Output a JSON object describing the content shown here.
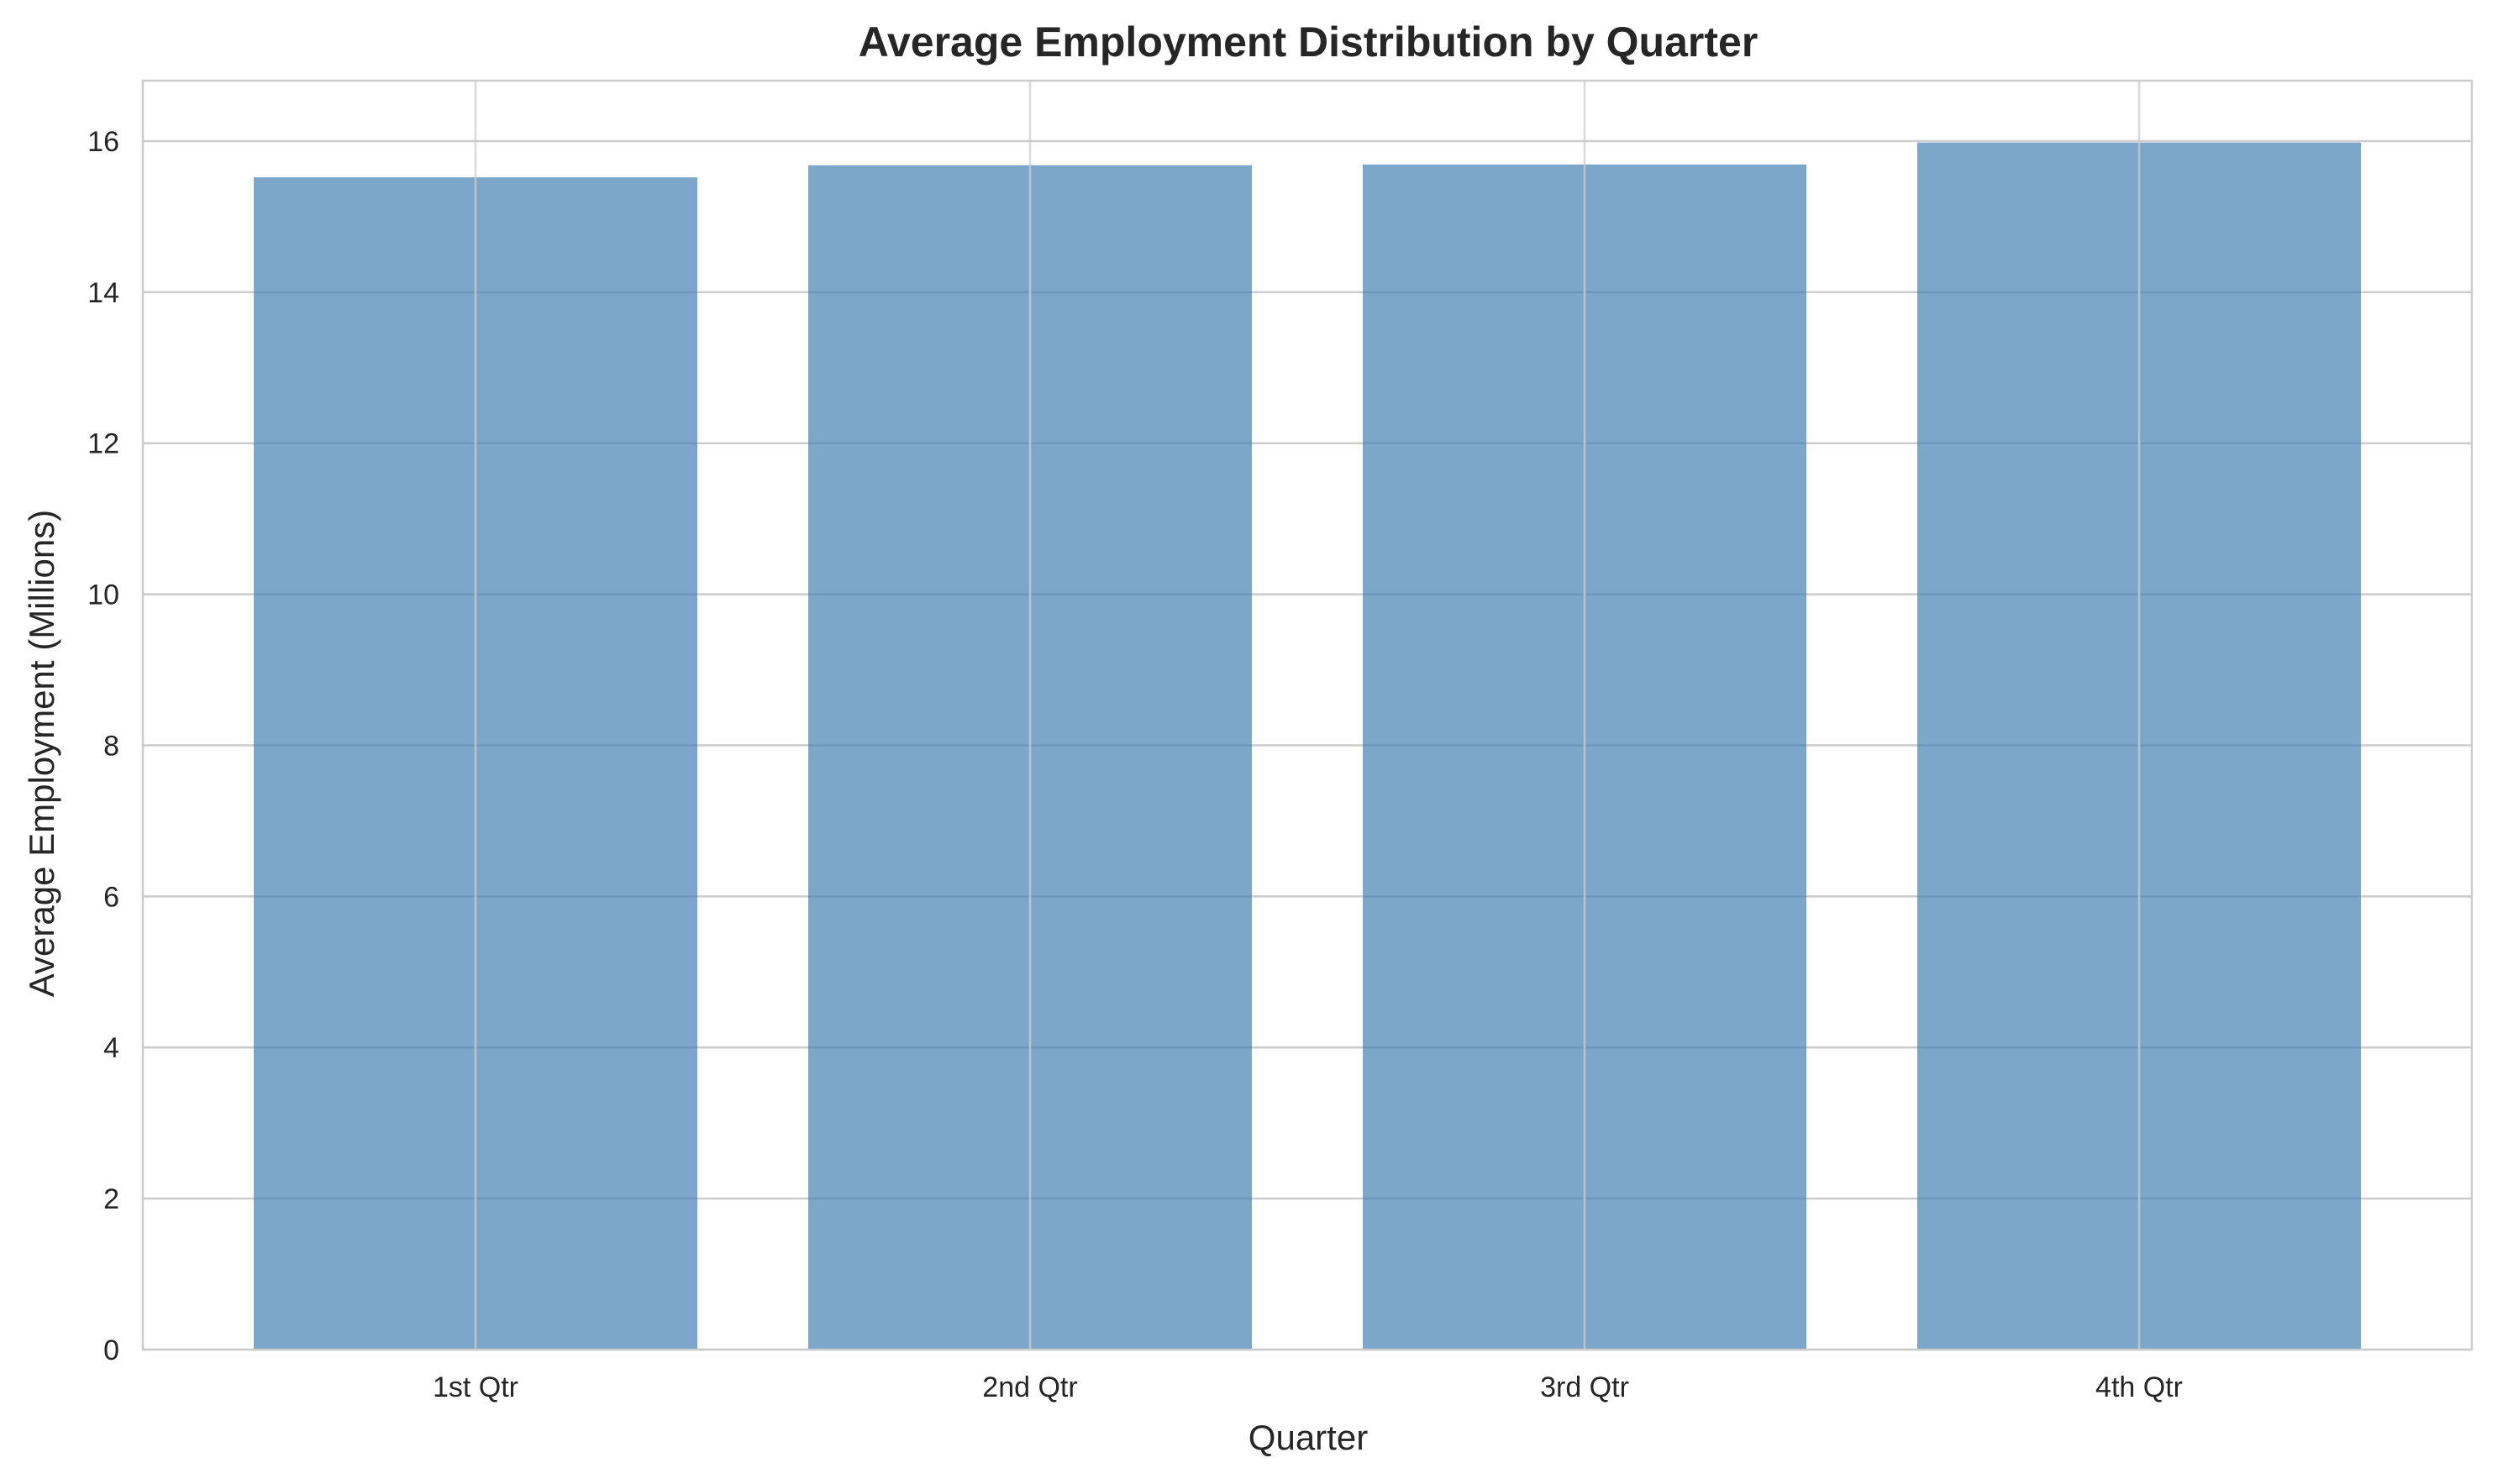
{
  "chart_data": {
    "type": "bar",
    "title": "Average Employment Distribution by Quarter",
    "xlabel": "Quarter",
    "ylabel": "Average Employment (Millions)",
    "categories": [
      "1st Qtr",
      "2nd Qtr",
      "3rd Qtr",
      "4th Qtr"
    ],
    "values": [
      15.52,
      15.68,
      15.69,
      15.98
    ],
    "ylim": [
      0,
      16.8
    ],
    "yticks": [
      0,
      2,
      4,
      6,
      8,
      10,
      12,
      14,
      16
    ],
    "grid": true,
    "colors": {
      "bar": "#4682b4",
      "grid": "#cccccc",
      "text": "#262626"
    }
  }
}
